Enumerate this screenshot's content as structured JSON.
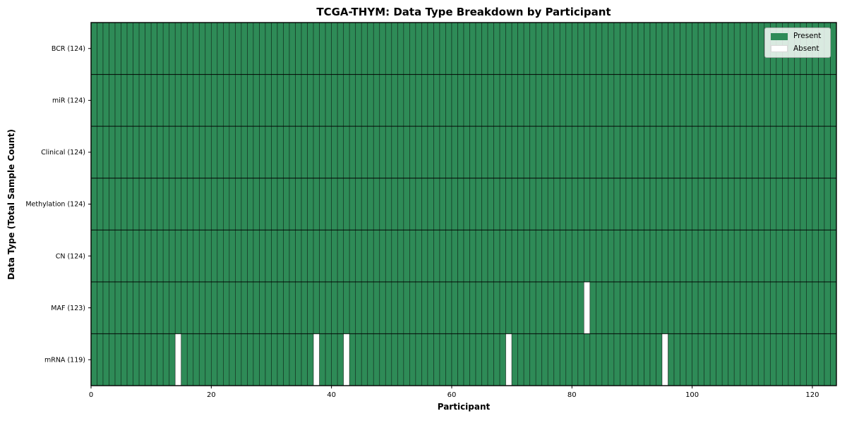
{
  "chart_data": {
    "type": "heatmap",
    "title": "TCGA-THYM: Data Type Breakdown by Participant",
    "xlabel": "Participant",
    "ylabel": "Data Type (Total Sample Count)",
    "x_ticks": [
      0,
      20,
      40,
      60,
      80,
      100,
      120
    ],
    "xlim": [
      0,
      124
    ],
    "n_participants": 124,
    "rows": [
      {
        "label": "BCR (124)",
        "data_type": "BCR",
        "total_samples": 124,
        "absent_participants": []
      },
      {
        "label": "miR (124)",
        "data_type": "miR",
        "total_samples": 124,
        "absent_participants": []
      },
      {
        "label": "Clinical (124)",
        "data_type": "Clinical",
        "total_samples": 124,
        "absent_participants": []
      },
      {
        "label": "Methylation (124)",
        "data_type": "Methylation",
        "total_samples": 124,
        "absent_participants": []
      },
      {
        "label": "CN (124)",
        "data_type": "CN",
        "total_samples": 124,
        "absent_participants": []
      },
      {
        "label": "MAF (123)",
        "data_type": "MAF",
        "total_samples": 123,
        "absent_participants": [
          82
        ]
      },
      {
        "label": "mRNA (119)",
        "data_type": "mRNA",
        "total_samples": 119,
        "absent_participants": [
          14,
          37,
          42,
          69,
          95
        ]
      }
    ],
    "legend": {
      "position": "upper right",
      "items": [
        {
          "label": "Present",
          "color": "#2e8b57"
        },
        {
          "label": "Absent",
          "color": "#ffffff"
        }
      ]
    },
    "colors": {
      "present": "#2e8b57",
      "absent": "#ffffff",
      "cell_edge": "#000000",
      "spine": "#000000",
      "background": "#ffffff"
    }
  }
}
